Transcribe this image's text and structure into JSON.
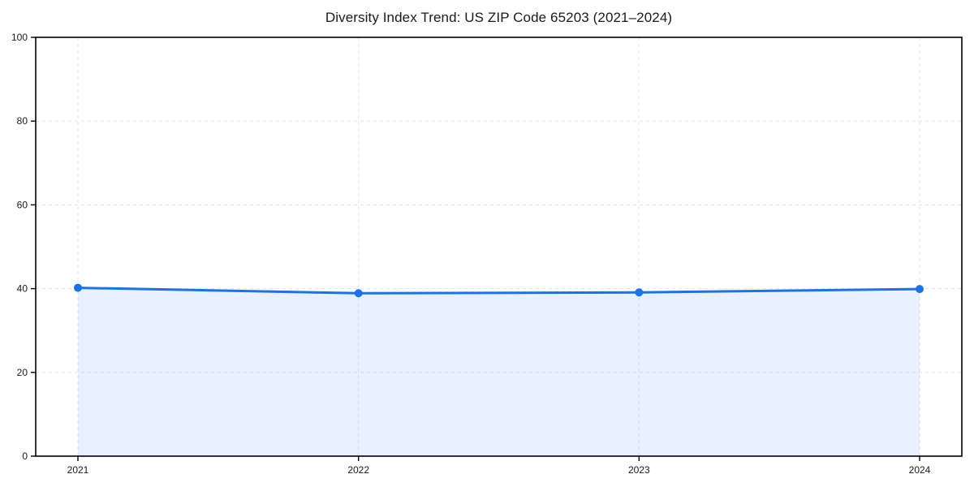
{
  "chart_data": {
    "type": "area",
    "title": "Diversity Index Trend: US ZIP Code 65203 (2021–2024)",
    "x": [
      2021,
      2022,
      2023,
      2024
    ],
    "series": [
      {
        "name": "Diversity Index",
        "values": [
          40.2,
          38.9,
          39.1,
          39.9
        ]
      }
    ],
    "xlabel": "",
    "ylabel": "",
    "xticks": [
      "2021",
      "2022",
      "2023",
      "2024"
    ],
    "yticks": [
      0,
      20,
      40,
      60,
      80,
      100
    ],
    "ylim": [
      0,
      100
    ],
    "grid": true,
    "grid_style": "dashed",
    "legend": false,
    "colors": {
      "line": "#1a73e8",
      "marker": "#1a73e8",
      "fill": "#1a73e8",
      "fill_opacity": 0.1,
      "grid": "#e3e3e3",
      "spine": "#000000",
      "tick_text": "#1a1a1a",
      "background": "#ffffff"
    }
  }
}
